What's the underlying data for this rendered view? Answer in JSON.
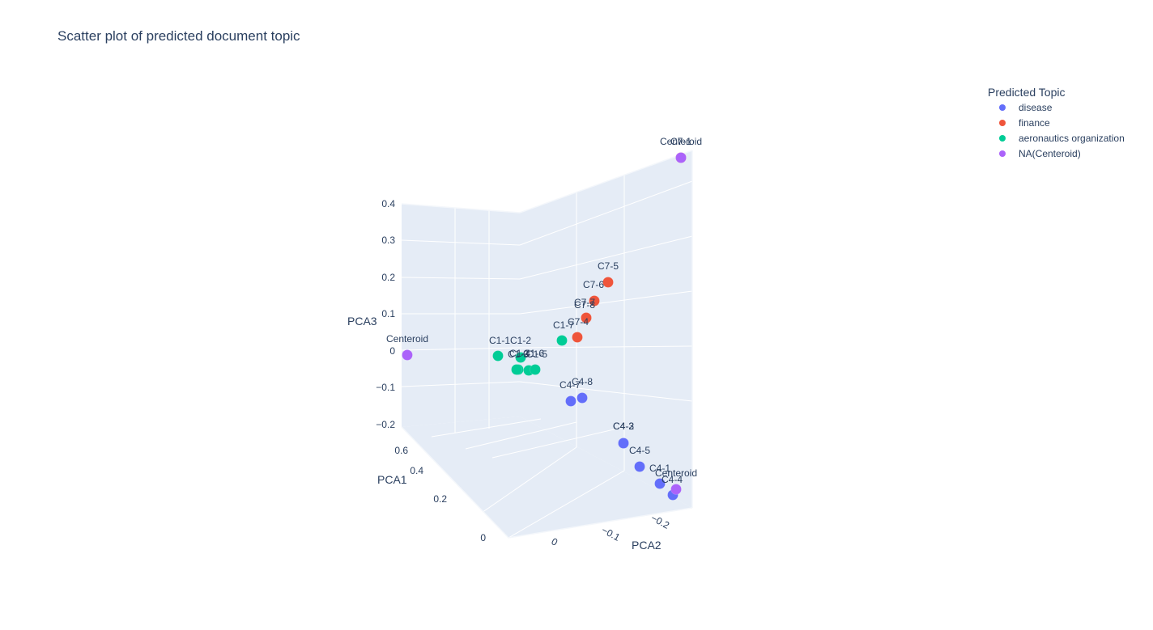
{
  "chart_data": {
    "type": "scatter",
    "title": "Scatter plot of predicted document topic",
    "axes": {
      "x": {
        "label": "PCA1",
        "ticks": [
          "0",
          "0.2",
          "0.4",
          "0.6"
        ]
      },
      "y": {
        "label": "PCA2",
        "ticks": [
          "0",
          "−0.1",
          "−0.2"
        ]
      },
      "z": {
        "label": "PCA3",
        "ticks": [
          "0.4",
          "0.3",
          "0.2",
          "0.1",
          "0",
          "−0.1",
          "−0.2"
        ]
      }
    },
    "legend": {
      "title": "Predicted Topic",
      "placement": "top-right",
      "items": [
        {
          "name": "disease",
          "color": "#636efa"
        },
        {
          "name": "finance",
          "color": "#ef553b"
        },
        {
          "name": "aeronautics organization",
          "color": "#00cc96"
        },
        {
          "name": "NA(Centeroid)",
          "color": "#ab63fa"
        }
      ]
    },
    "series": [
      {
        "name": "disease",
        "color": "#636efa",
        "points": [
          {
            "label": "C4-8"
          },
          {
            "label": "C4-7"
          },
          {
            "label": "C4-2"
          },
          {
            "label": "C4-3"
          },
          {
            "label": "C4-5"
          },
          {
            "label": "C4-1"
          },
          {
            "label": "C4-4"
          }
        ]
      },
      {
        "name": "finance",
        "color": "#ef553b",
        "points": [
          {
            "label": "C7-5"
          },
          {
            "label": "C7-6"
          },
          {
            "label": "C7-7"
          },
          {
            "label": "C7-8"
          },
          {
            "label": "C7-4"
          },
          {
            "label": "C7-1"
          }
        ]
      },
      {
        "name": "aeronautics organization",
        "color": "#00cc96",
        "points": [
          {
            "label": "C1-7"
          },
          {
            "label": "C1-1"
          },
          {
            "label": "C1-2"
          },
          {
            "label": "C1-3"
          },
          {
            "label": "C1-4"
          },
          {
            "label": "C1-5"
          },
          {
            "label": "C1-6"
          }
        ]
      },
      {
        "name": "NA(Centeroid)",
        "color": "#ab63fa",
        "points": [
          {
            "label": "Centeroid"
          },
          {
            "label": "Centeroid"
          },
          {
            "label": "Centeroid"
          }
        ]
      }
    ],
    "grid": true,
    "background_color": "#e5ecf6"
  }
}
